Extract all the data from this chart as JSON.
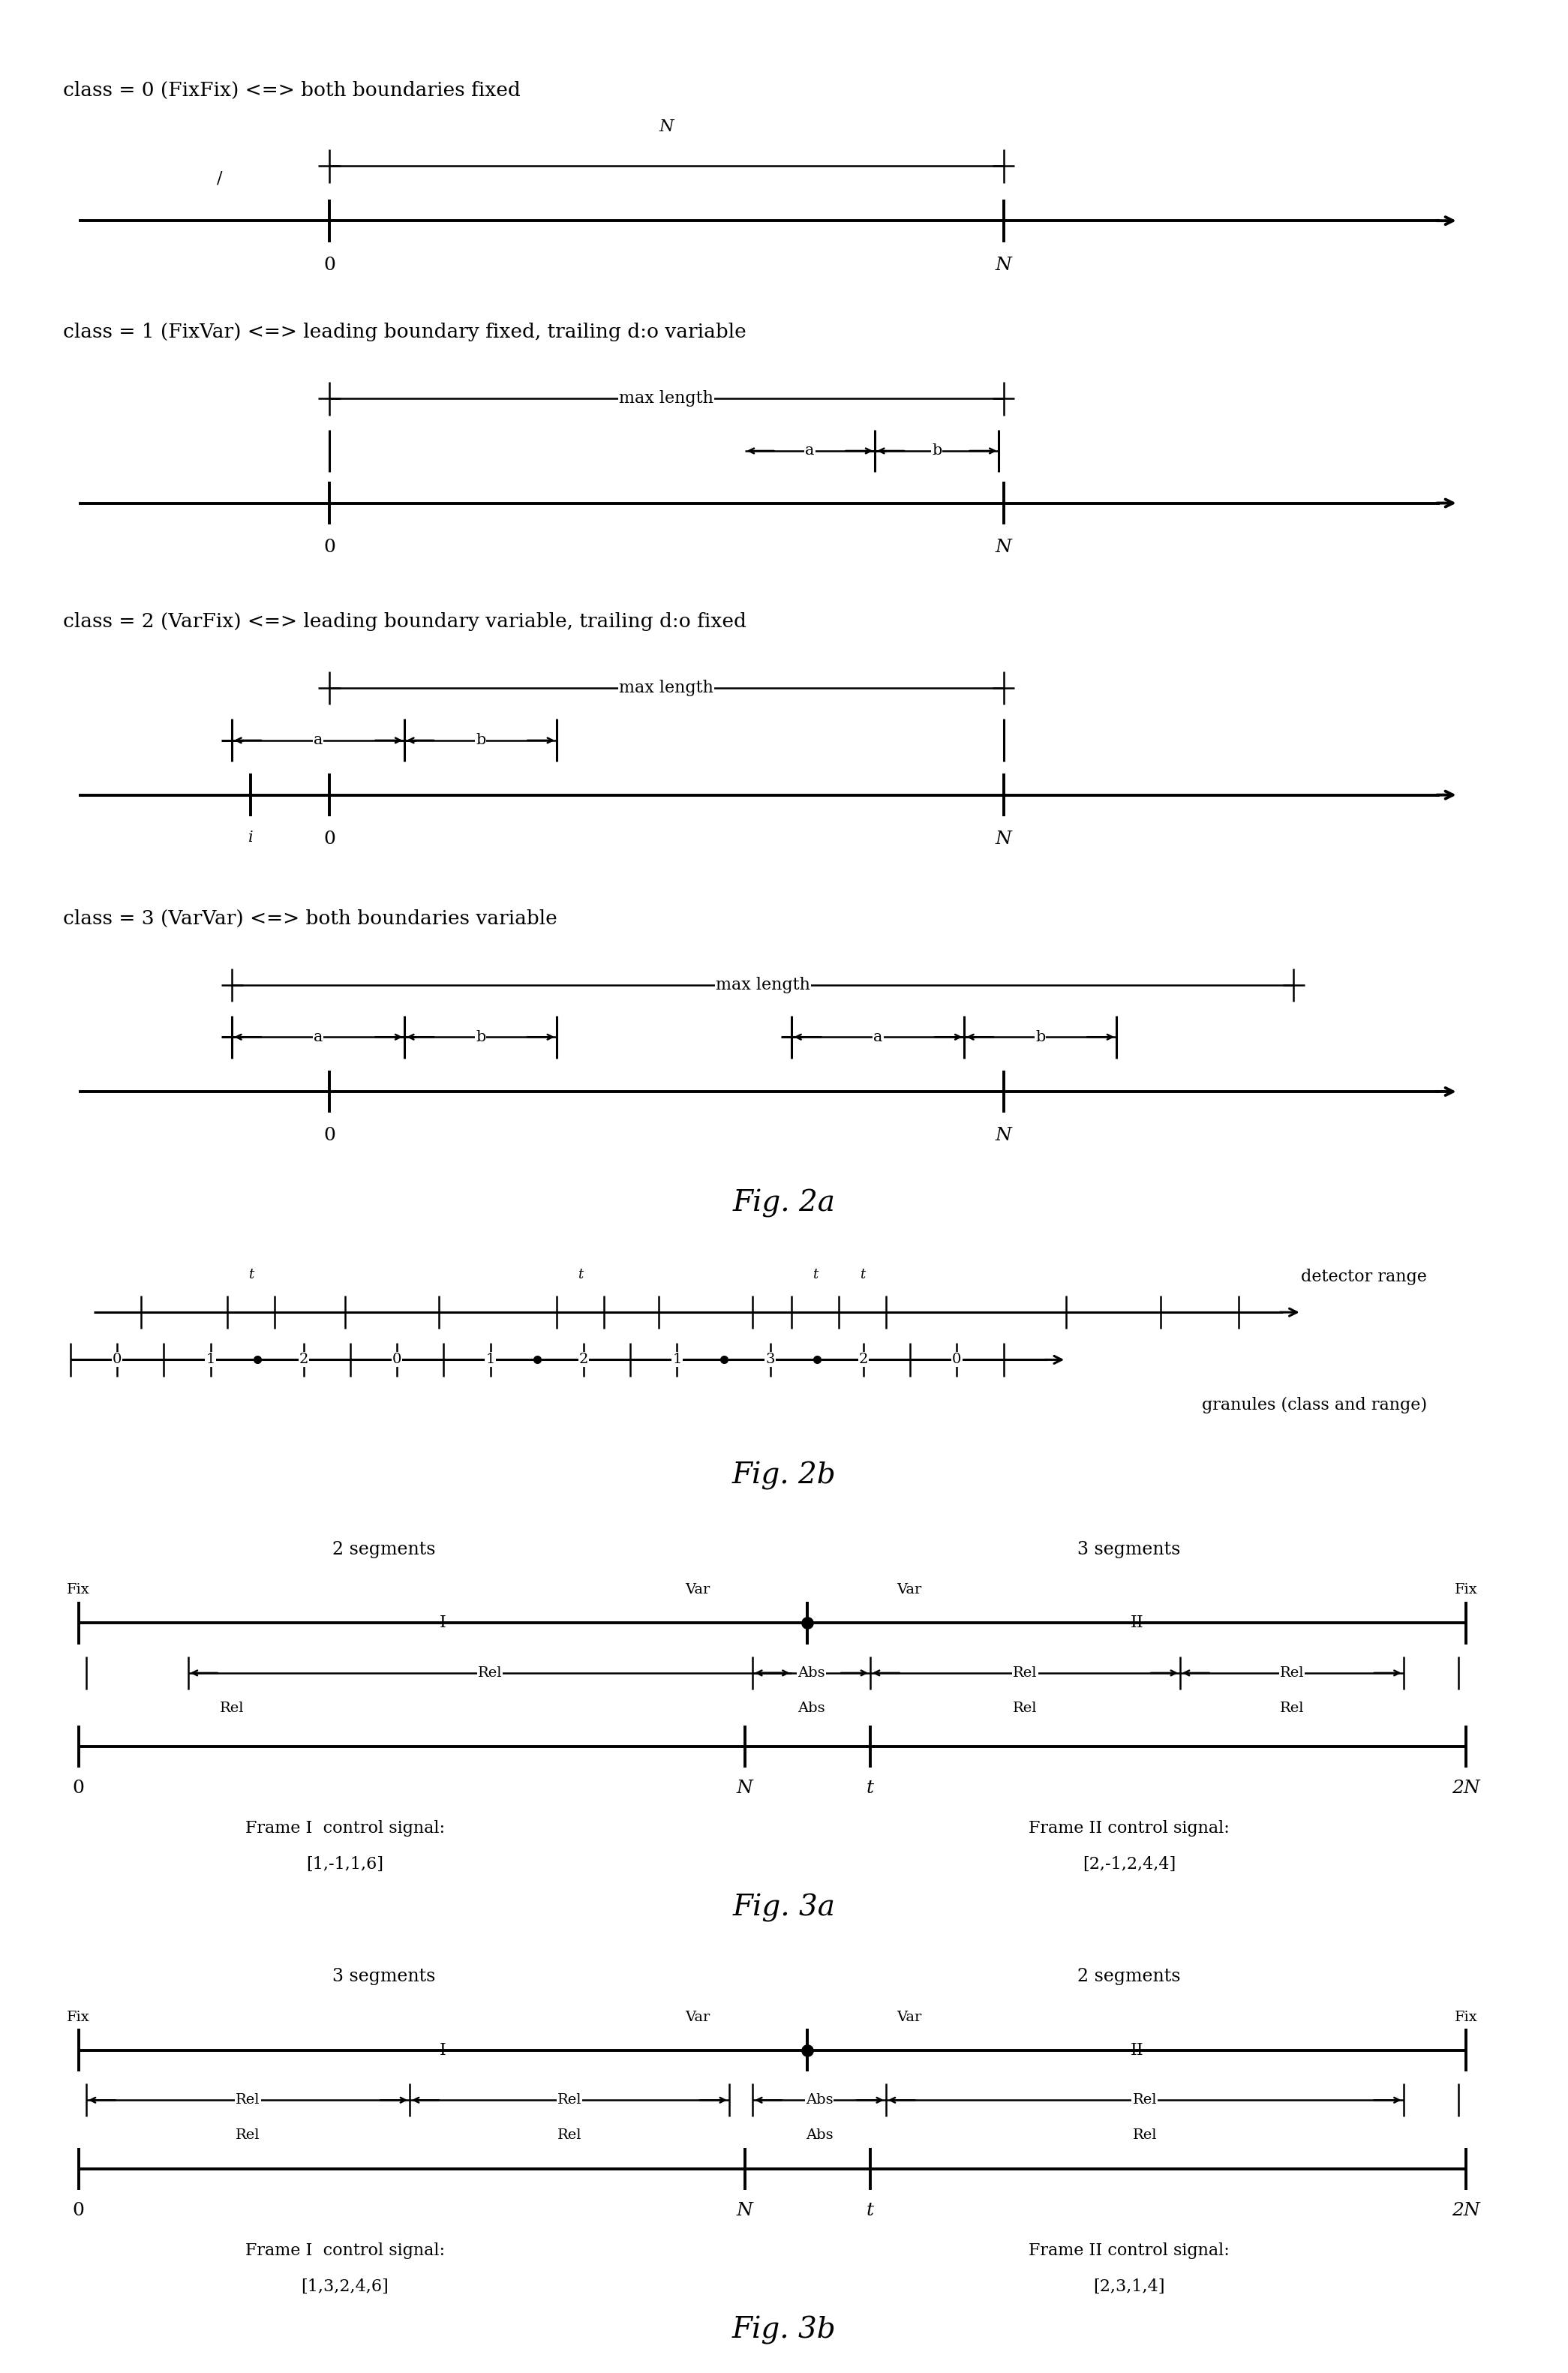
{
  "bg_color": "#ffffff",
  "fig_width": 20.9,
  "fig_height": 31.63,
  "class0_label": "class = 0 (FixFix) <=> both boundaries fixed",
  "class1_label": "class = 1 (FixVar) <=> leading boundary fixed, trailing d:o variable",
  "class2_label": "class = 2 (VarFix) <=> leading boundary variable, trailing d:o fixed",
  "class3_label": "class = 3 (VarVar) <=> both boundaries variable",
  "fig2a_label": "Fig. 2a",
  "fig2b_label": "Fig. 2b",
  "fig3a_label": "Fig. 3a",
  "fig3b_label": "Fig. 3b",
  "detector_range": "detector range",
  "granules_label": "granules (class and range)",
  "fig3a_ctrl1": "Frame I  control signal:",
  "fig3a_ctrl1_val": "[1,-1,1,6]",
  "fig3a_ctrl2": "Frame II control signal:",
  "fig3a_ctrl2_val": "[2,-1,2,4,4]",
  "fig3b_ctrl1": "Frame I  control signal:",
  "fig3b_ctrl1_val": "[1,3,2,4,6]",
  "fig3b_ctrl2": "Frame II control signal:",
  "fig3b_ctrl2_val": "[2,3,1,4]"
}
